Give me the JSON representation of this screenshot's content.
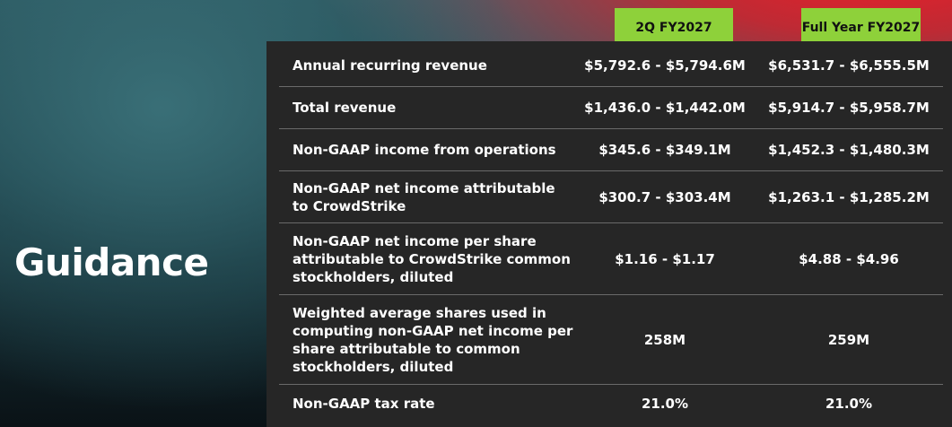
{
  "title": "Guidance",
  "columns": {
    "q2": "2Q FY2027",
    "fy": "Full Year FY2027"
  },
  "rows": [
    {
      "label": "Annual recurring revenue",
      "q2": "$5,792.6 - $5,794.6M",
      "fy": "$6,531.7 - $6,555.5M"
    },
    {
      "label": "Total revenue",
      "q2": "$1,436.0 - $1,442.0M",
      "fy": "$5,914.7 - $5,958.7M"
    },
    {
      "label": "Non-GAAP income from operations",
      "q2": "$345.6 - $349.1M",
      "fy": "$1,452.3 - $1,480.3M"
    },
    {
      "label": "Non-GAAP net income attributable to CrowdStrike",
      "q2": "$300.7 - $303.4M",
      "fy": "$1,263.1 - $1,285.2M"
    },
    {
      "label": "Non-GAAP net income per share attributable to CrowdStrike common stockholders, diluted",
      "q2": "$1.16 - $1.17",
      "fy": "$4.88 -  $4.96"
    },
    {
      "label": "Weighted average shares used in computing non-GAAP net income per share attributable to common stockholders, diluted",
      "q2": "258M",
      "fy": "259M"
    },
    {
      "label": "Non-GAAP tax rate",
      "q2": "21.0%",
      "fy": "21.0%"
    }
  ]
}
